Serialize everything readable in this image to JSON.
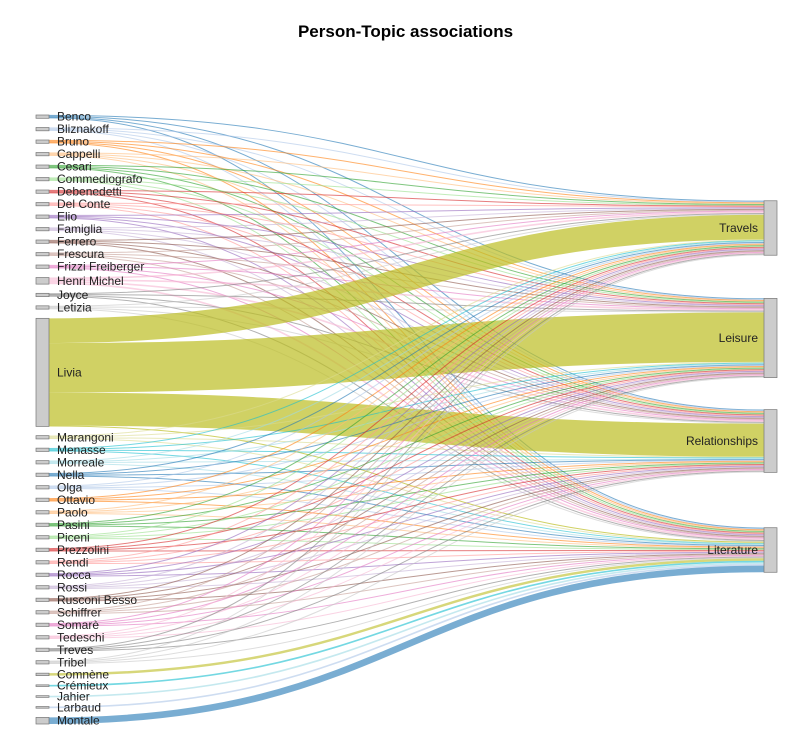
{
  "chart_data": {
    "type": "sankey",
    "title": "Person-Topic associations",
    "targets": [
      "Travels",
      "Leisure",
      "Relationships",
      "Literature"
    ],
    "sources": [
      {
        "name": "Benco",
        "color": "#1f77b4",
        "values": [
          1,
          1,
          1,
          1
        ]
      },
      {
        "name": "Bliznakoff",
        "color": "#aec7e8",
        "values": [
          1,
          1,
          1,
          1
        ]
      },
      {
        "name": "Bruno",
        "color": "#ff7f0e",
        "values": [
          1,
          1,
          1,
          1
        ]
      },
      {
        "name": "Cappelli",
        "color": "#ffbb78",
        "values": [
          1,
          1,
          1,
          1
        ]
      },
      {
        "name": "Cesari",
        "color": "#2ca02c",
        "values": [
          1,
          1,
          1,
          1
        ]
      },
      {
        "name": "Commediografo",
        "color": "#98df8a",
        "values": [
          1,
          1,
          1,
          1
        ]
      },
      {
        "name": "Debenedetti",
        "color": "#d62728",
        "values": [
          1,
          1,
          1,
          1
        ]
      },
      {
        "name": "Del Conte",
        "color": "#ff9896",
        "values": [
          1,
          1,
          1,
          1
        ]
      },
      {
        "name": "Elio",
        "color": "#9467bd",
        "values": [
          1,
          1,
          1,
          1
        ]
      },
      {
        "name": "Famiglia",
        "color": "#c5b0d5",
        "values": [
          1,
          1,
          1,
          1
        ]
      },
      {
        "name": "Ferrero",
        "color": "#8c564b",
        "values": [
          1,
          1,
          1,
          1
        ]
      },
      {
        "name": "Frescura",
        "color": "#c49c94",
        "values": [
          1,
          1,
          1,
          1
        ]
      },
      {
        "name": "Frizzi Freiberger",
        "color": "#e377c2",
        "values": [
          1,
          1,
          1,
          1
        ]
      },
      {
        "name": "Henri Michel",
        "color": "#f7b6d2",
        "values": [
          2,
          2,
          2,
          2
        ]
      },
      {
        "name": "Joyce",
        "color": "#7f7f7f",
        "values": [
          1,
          1,
          1,
          1
        ]
      },
      {
        "name": "Letizia",
        "color": "#c7c7c7",
        "values": [
          1,
          1,
          1,
          1
        ]
      },
      {
        "name": "Livia",
        "color": "#bcbd22",
        "values": [
          30,
          60,
          40,
          1
        ]
      },
      {
        "name": "Marangoni",
        "color": "#dbdb8d",
        "values": [
          1,
          1,
          1,
          1
        ]
      },
      {
        "name": "Menasse",
        "color": "#17becf",
        "values": [
          1,
          1,
          1,
          1
        ]
      },
      {
        "name": "Morreale",
        "color": "#9edae5",
        "values": [
          1,
          1,
          1,
          1
        ]
      },
      {
        "name": "Nella",
        "color": "#1f77b4",
        "values": [
          1,
          1,
          1,
          1
        ]
      },
      {
        "name": "Olga",
        "color": "#aec7e8",
        "values": [
          1,
          1,
          1,
          1
        ]
      },
      {
        "name": "Ottavio",
        "color": "#ff7f0e",
        "values": [
          1,
          1,
          1,
          1
        ]
      },
      {
        "name": "Paolo",
        "color": "#ffbb78",
        "values": [
          1,
          1,
          1,
          1
        ]
      },
      {
        "name": "Pasini",
        "color": "#2ca02c",
        "values": [
          1,
          1,
          1,
          1
        ]
      },
      {
        "name": "Piceni",
        "color": "#98df8a",
        "values": [
          1,
          1,
          1,
          1
        ]
      },
      {
        "name": "Prezzolini",
        "color": "#d62728",
        "values": [
          1,
          1,
          1,
          1
        ]
      },
      {
        "name": "Rendi",
        "color": "#ff9896",
        "values": [
          1,
          1,
          1,
          1
        ]
      },
      {
        "name": "Rocca",
        "color": "#9467bd",
        "values": [
          1,
          1,
          1,
          1
        ]
      },
      {
        "name": "Rossi",
        "color": "#c5b0d5",
        "values": [
          1,
          1,
          1,
          1
        ]
      },
      {
        "name": "Rusconi Besso",
        "color": "#8c564b",
        "values": [
          1,
          1,
          1,
          1
        ]
      },
      {
        "name": "Schiffrer",
        "color": "#c49c94",
        "values": [
          1,
          1,
          1,
          1
        ]
      },
      {
        "name": "Somarè",
        "color": "#e377c2",
        "values": [
          1,
          1,
          1,
          1
        ]
      },
      {
        "name": "Tedeschi",
        "color": "#f7b6d2",
        "values": [
          1,
          1,
          1,
          1
        ]
      },
      {
        "name": "Treves",
        "color": "#7f7f7f",
        "values": [
          1,
          1,
          1,
          1
        ]
      },
      {
        "name": "Tribel",
        "color": "#c7c7c7",
        "values": [
          1,
          1,
          1,
          1
        ]
      },
      {
        "name": "Comnène",
        "color": "#bcbd22",
        "values": [
          0,
          0,
          0,
          3
        ]
      },
      {
        "name": "Crémieux",
        "color": "#17becf",
        "values": [
          0,
          0,
          0,
          2
        ]
      },
      {
        "name": "Jahier",
        "color": "#9edae5",
        "values": [
          0,
          0,
          0,
          2
        ]
      },
      {
        "name": "Larbaud",
        "color": "#aec7e8",
        "values": [
          0,
          0,
          0,
          2
        ]
      },
      {
        "name": "Montale",
        "color": "#1f77b4",
        "values": [
          0,
          0,
          0,
          8
        ]
      }
    ]
  }
}
